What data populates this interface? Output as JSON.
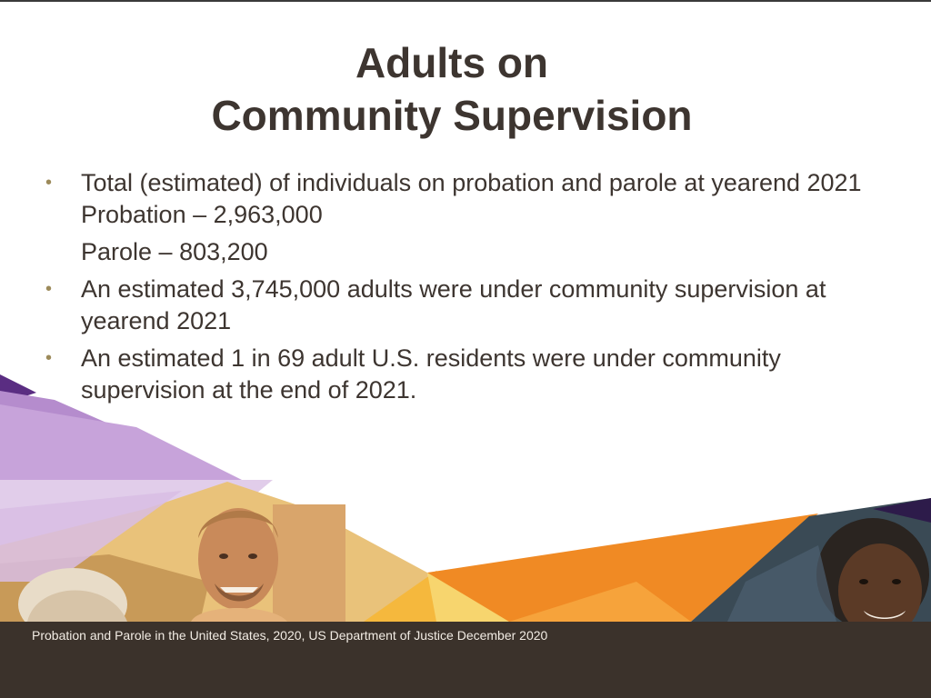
{
  "title": {
    "line1": "Adults on",
    "line2": "Community Supervision"
  },
  "bullets": [
    {
      "lines": [
        "Total (estimated) of individuals on probation and parole at yearend 2021",
        "Probation – 2,963,000"
      ],
      "sub": "Parole – 803,200"
    },
    {
      "lines": [
        "An estimated 3,745,000 adults were under community supervision at",
        "yearend 2021"
      ]
    },
    {
      "lines": [
        "An estimated 1 in 69 adult U.S. residents were under community",
        "supervision at the end of 2021."
      ]
    }
  ],
  "bullet_glyph": "•",
  "footer": {
    "source": "Probation and Parole in the United States, 2020, US Department of Justice December 2020"
  },
  "colors": {
    "title": "#3d3530",
    "footer_bg": "#3b322b",
    "purple_dark": "#5a2d82",
    "purple_light": "#c9a9d9",
    "orange": "#f08a24",
    "gold": "#f5b83d"
  },
  "decor": {
    "photo_left": "smiling-man-photo",
    "photo_right": "smiling-woman-photo"
  }
}
